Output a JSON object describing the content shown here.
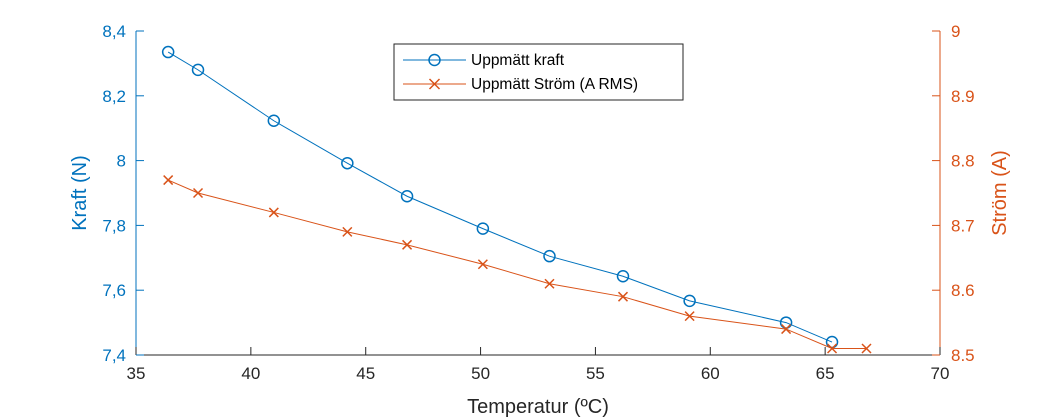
{
  "chart_data": {
    "type": "line",
    "title": "",
    "xlabel": "Temperatur (ºC)",
    "ylabel_left": "Kraft (N)",
    "ylabel_right": "Ström (A)",
    "xlim": [
      35,
      70
    ],
    "ylim_left": [
      7.4,
      8.4
    ],
    "ylim_right": [
      8.5,
      9.0
    ],
    "x_ticks": [
      "35",
      "40",
      "45",
      "50",
      "55",
      "60",
      "65",
      "70"
    ],
    "y_left_ticks": [
      "7,4",
      "7,6",
      "7,8",
      "8",
      "8,2",
      "8,4"
    ],
    "y_right_ticks": [
      "8.5",
      "8.6",
      "8.7",
      "8.8",
      "8.9",
      "9"
    ],
    "grid": false,
    "legend_position": "top-center",
    "colors": {
      "left": "#0072BD",
      "right": "#D95319"
    },
    "series": [
      {
        "name": "Uppmätt kraft",
        "axis": "left",
        "marker": "circle",
        "x": [
          36.4,
          37.7,
          41.0,
          44.2,
          46.8,
          50.1,
          53.0,
          56.2,
          59.1,
          63.3,
          65.3
        ],
        "y": [
          8.335,
          8.28,
          8.123,
          7.992,
          7.89,
          7.79,
          7.705,
          7.643,
          7.567,
          7.5,
          7.44
        ]
      },
      {
        "name": "Uppmätt Ström (A RMS)",
        "axis": "right",
        "marker": "x",
        "x": [
          36.4,
          37.7,
          41.0,
          44.2,
          46.8,
          50.1,
          53.0,
          56.2,
          59.1,
          63.3,
          65.3,
          66.8
        ],
        "y": [
          8.77,
          8.75,
          8.72,
          8.69,
          8.67,
          8.64,
          8.61,
          8.59,
          8.56,
          8.54,
          8.51,
          8.51
        ]
      }
    ]
  }
}
